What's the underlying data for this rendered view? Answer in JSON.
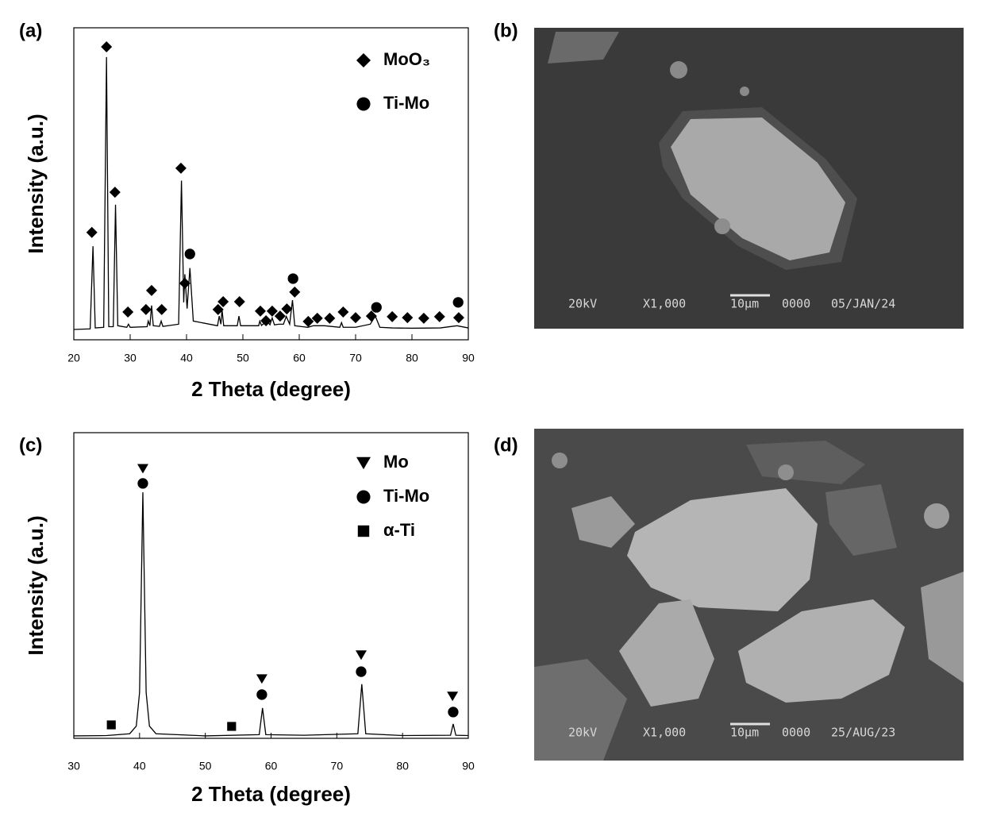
{
  "panels": [
    "(a)",
    "(b)",
    "(c)",
    "(d)"
  ],
  "chart_data": [
    {
      "type": "line",
      "x_label": "2 Theta (degree)",
      "y_label": "Intensity (a.u.)",
      "color": "#000000",
      "x": [
        20,
        22.9,
        23.4,
        23.8,
        25.3,
        25.8,
        26.2,
        27.0,
        27.4,
        27.8,
        29.4,
        29.7,
        30.0,
        33.0,
        33.2,
        33.5,
        33.8,
        34.1,
        35.2,
        35.5,
        35.8,
        38.6,
        39.1,
        39.5,
        39.7,
        40.1,
        40.6,
        41.2,
        45.5,
        45.8,
        46.1,
        46.3,
        46.6,
        49.0,
        49.3,
        49.6,
        52.8,
        53.0,
        53.3,
        54.3,
        54.8,
        55.2,
        55.6,
        56.4,
        57.2,
        57.7,
        58.3,
        58.8,
        59.2,
        61.5,
        62.5,
        64.5,
        67.2,
        67.5,
        67.8,
        70.0,
        72.6,
        73.5,
        74.3,
        76.5,
        80,
        85,
        88,
        90
      ],
      "values": [
        3.3,
        3.5,
        30,
        3.8,
        4,
        90.6,
        4.2,
        4.2,
        43.3,
        4.5,
        4,
        5,
        4,
        4.2,
        6,
        4.5,
        11,
        4.5,
        4.3,
        6,
        4.3,
        5,
        51,
        12,
        21,
        10,
        23,
        6,
        4.5,
        7.6,
        5,
        9.7,
        4.5,
        4.5,
        7.6,
        4.5,
        4.5,
        6,
        4.6,
        6,
        4.8,
        7,
        4.8,
        5,
        5,
        7.5,
        5,
        12.7,
        4.5,
        4,
        4.5,
        4.5,
        4,
        5.5,
        4,
        4,
        5,
        7.6,
        4,
        3.8,
        3.7,
        3.8,
        4.5,
        3.8
      ],
      "xlim": [
        20,
        90
      ],
      "xticks": [
        20,
        30,
        40,
        50,
        60,
        70,
        80,
        90
      ],
      "ylim": [
        0,
        100
      ],
      "markers": [
        {
          "name": "MoO₃",
          "shape": "diamond",
          "x": [
            23.2,
            25.8,
            27.3,
            29.6,
            32.8,
            33.8,
            35.6,
            39.0,
            39.7,
            45.6,
            46.5,
            49.4,
            53.1,
            54.1,
            55.2,
            56.6,
            57.8,
            59.2,
            61.6,
            63.2,
            65.4,
            67.8,
            70.0,
            72.8,
            76.5,
            79.2,
            82.1,
            84.9,
            88.3
          ],
          "y": [
            34.4,
            93.9,
            47.3,
            8.9,
            9.7,
            15.8,
            9.7,
            55.0,
            18.1,
            9.7,
            12.2,
            12.2,
            9.2,
            6.1,
            9.2,
            7.6,
            9.9,
            15.3,
            5.9,
            6.9,
            6.9,
            8.9,
            7.1,
            7.6,
            7.4,
            7.1,
            6.9,
            7.4,
            7.1
          ]
        },
        {
          "name": "Ti-Mo",
          "shape": "circle",
          "x": [
            40.6,
            58.9,
            73.7,
            88.2
          ],
          "y": [
            27.5,
            19.6,
            10.4,
            12.0
          ]
        }
      ]
    },
    {
      "type": "line",
      "x_label": "2 Theta (degree)",
      "y_label": "Intensity (a.u.)",
      "color": "#000000",
      "x": [
        30,
        35,
        38.5,
        39.5,
        40.0,
        40.5,
        41.0,
        41.5,
        42.5,
        50,
        58.2,
        58.7,
        59.2,
        65,
        73.2,
        73.8,
        74.4,
        80,
        87.3,
        87.7,
        88.1,
        90
      ],
      "values": [
        0.8,
        0.9,
        1.5,
        4,
        15,
        80.5,
        15,
        4,
        1.5,
        0.8,
        1.2,
        9.9,
        1.2,
        1,
        1.5,
        17.7,
        1.5,
        0.9,
        1,
        4.7,
        1,
        0.9
      ],
      "xlim": [
        30,
        90
      ],
      "xticks": [
        30,
        40,
        50,
        60,
        70,
        80,
        90
      ],
      "ylim": [
        0,
        100
      ],
      "markers": [
        {
          "name": "Mo",
          "shape": "triangle",
          "x": [
            40.5,
            58.6,
            73.7,
            87.6
          ],
          "y": [
            88.3,
            19.5,
            27.3,
            13.8
          ]
        },
        {
          "name": "Ti-Mo",
          "shape": "circle",
          "x": [
            40.5,
            58.6,
            73.7,
            87.7
          ],
          "y": [
            83.4,
            14.3,
            21.8,
            8.6
          ]
        },
        {
          "name": "α-Ti",
          "shape": "square",
          "x": [
            35.7,
            54.0
          ],
          "y": [
            4.4,
            3.9
          ]
        }
      ]
    }
  ],
  "images": [
    {
      "voltage": "20kV",
      "magnification": "X1,000",
      "scale": "10μm",
      "id": "0000",
      "date": "05/JAN/24"
    },
    {
      "voltage": "20kV",
      "magnification": "X1,000",
      "scale": "10μm",
      "id": "0000",
      "date": "25/AUG/23"
    }
  ]
}
